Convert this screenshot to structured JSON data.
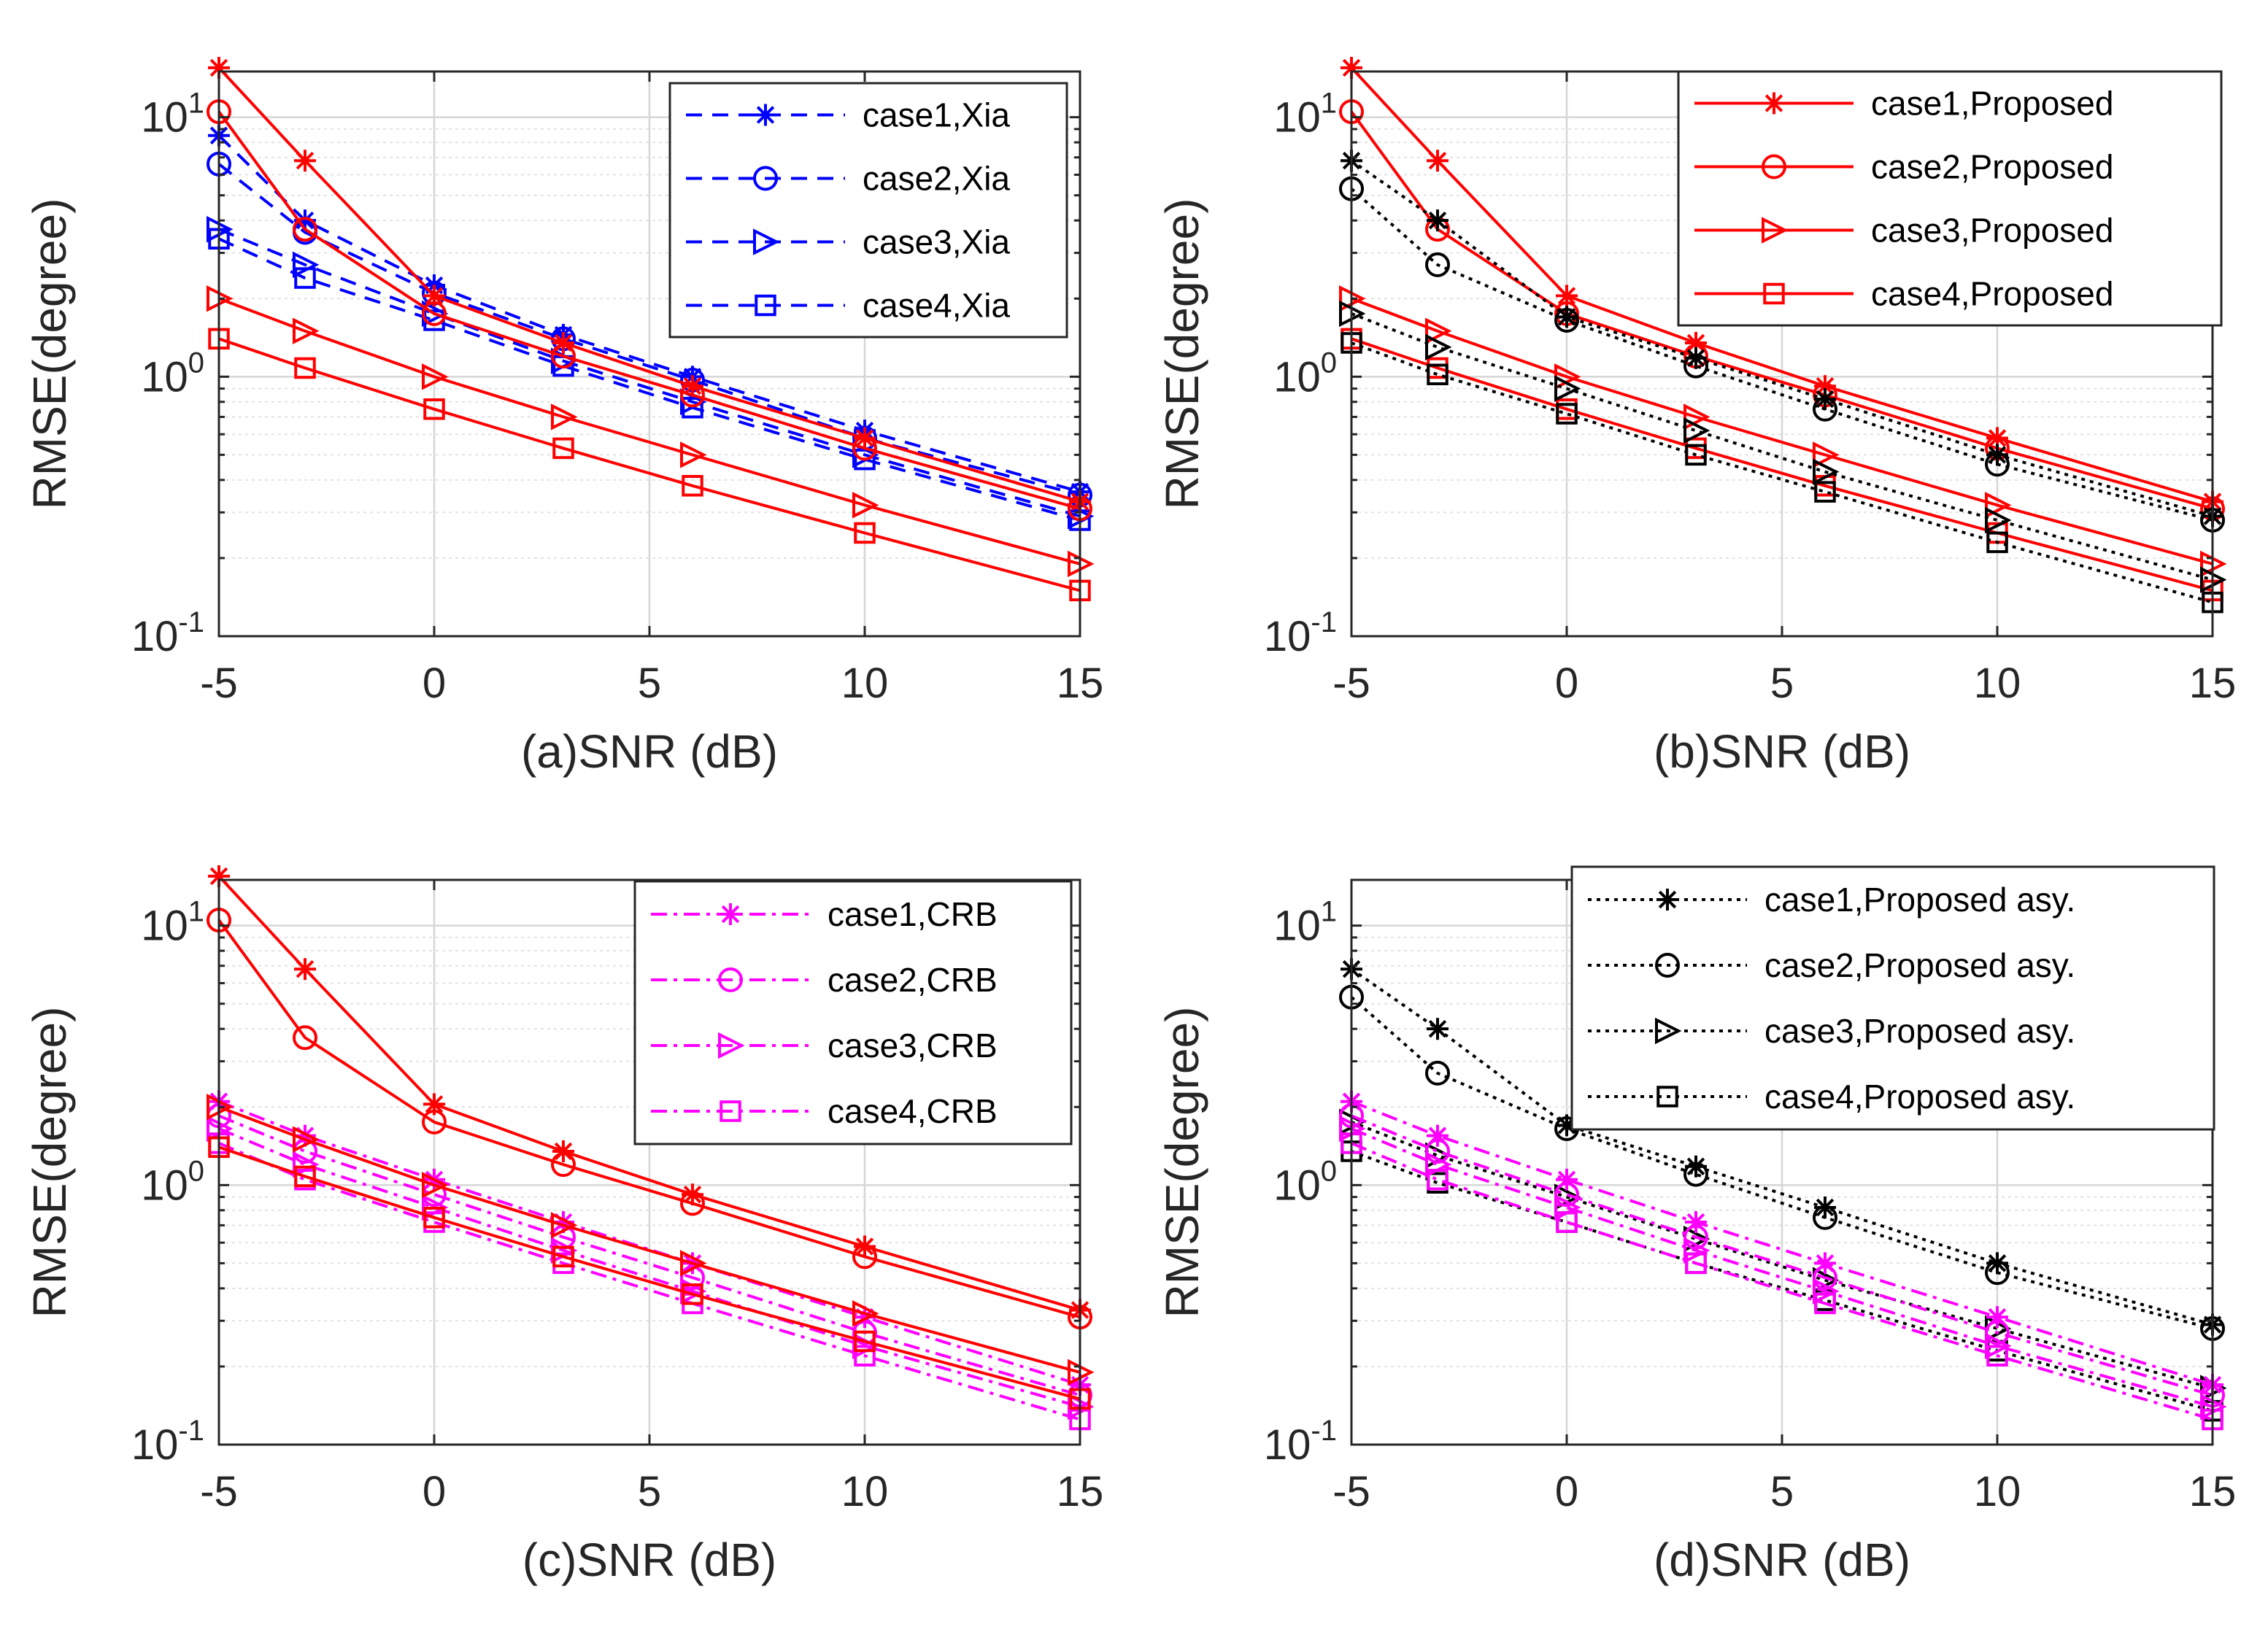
{
  "colors": {
    "red": "#ff0000",
    "blue": "#0000ff",
    "black": "#000000",
    "magenta": "#ff00ff"
  },
  "chart_data": [
    {
      "type": "line",
      "xlabel": "(a)SNR (dB)",
      "ylabel": "RMSE(degree)",
      "xlim": [
        -5,
        15
      ],
      "ylim": [
        0.1,
        15
      ],
      "yscale": "log",
      "xticks": [
        "-5",
        "0",
        "5",
        "10",
        "15"
      ],
      "yticks": [
        {
          "base": "10",
          "exp": "-1"
        },
        {
          "base": "10",
          "exp": "0"
        },
        {
          "base": "10",
          "exp": "1"
        }
      ],
      "grid": true,
      "legend_position": "top-right",
      "x": [
        -5,
        -3,
        0,
        3,
        6,
        10,
        15
      ],
      "series": [
        {
          "name": "case1,Xia",
          "color": "#0000ff",
          "marker": "star",
          "dash": "dashed",
          "in_legend": true,
          "values": [
            8.5,
            4.0,
            2.25,
            1.45,
            1.0,
            0.62,
            0.36
          ]
        },
        {
          "name": "case2,Xia",
          "color": "#0000ff",
          "marker": "circle",
          "dash": "dashed",
          "in_legend": true,
          "values": [
            6.6,
            3.6,
            2.1,
            1.4,
            0.97,
            0.58,
            0.35
          ]
        },
        {
          "name": "case3,Xia",
          "color": "#0000ff",
          "marker": "triangle",
          "dash": "dashed",
          "in_legend": true,
          "values": [
            3.7,
            2.7,
            1.75,
            1.15,
            0.8,
            0.5,
            0.29
          ]
        },
        {
          "name": "case4,Xia",
          "color": "#0000ff",
          "marker": "square",
          "dash": "dashed",
          "in_legend": true,
          "values": [
            3.4,
            2.4,
            1.65,
            1.1,
            0.76,
            0.48,
            0.28
          ]
        },
        {
          "name": "",
          "color": "#ff0000",
          "marker": "star",
          "dash": "solid",
          "in_legend": false,
          "values": [
            15.5,
            6.8,
            2.05,
            1.35,
            0.92,
            0.58,
            0.33
          ]
        },
        {
          "name": "",
          "color": "#ff0000",
          "marker": "circle",
          "dash": "solid",
          "in_legend": false,
          "values": [
            10.5,
            3.7,
            1.75,
            1.2,
            0.85,
            0.53,
            0.31
          ]
        },
        {
          "name": "",
          "color": "#ff0000",
          "marker": "triangle",
          "dash": "solid",
          "in_legend": false,
          "values": [
            2.0,
            1.5,
            1.0,
            0.7,
            0.5,
            0.32,
            0.19
          ]
        },
        {
          "name": "",
          "color": "#ff0000",
          "marker": "square",
          "dash": "solid",
          "in_legend": false,
          "values": [
            1.4,
            1.08,
            0.75,
            0.53,
            0.38,
            0.25,
            0.15
          ]
        }
      ]
    },
    {
      "type": "line",
      "xlabel": "(b)SNR (dB)",
      "ylabel": "RMSE(degree)",
      "xlim": [
        -5,
        15
      ],
      "ylim": [
        0.1,
        15
      ],
      "yscale": "log",
      "xticks": [
        "-5",
        "0",
        "5",
        "10",
        "15"
      ],
      "yticks": [
        {
          "base": "10",
          "exp": "-1"
        },
        {
          "base": "10",
          "exp": "0"
        },
        {
          "base": "10",
          "exp": "1"
        }
      ],
      "grid": true,
      "legend_position": "top-right",
      "x": [
        -5,
        -3,
        0,
        3,
        6,
        10,
        15
      ],
      "series": [
        {
          "name": "case1,Proposed",
          "color": "#ff0000",
          "marker": "star",
          "dash": "solid",
          "in_legend": true,
          "values": [
            15.5,
            6.8,
            2.05,
            1.35,
            0.92,
            0.58,
            0.33
          ]
        },
        {
          "name": "case2,Proposed",
          "color": "#ff0000",
          "marker": "circle",
          "dash": "solid",
          "in_legend": true,
          "values": [
            10.5,
            3.7,
            1.75,
            1.2,
            0.85,
            0.53,
            0.31
          ]
        },
        {
          "name": "case3,Proposed",
          "color": "#ff0000",
          "marker": "triangle",
          "dash": "solid",
          "in_legend": true,
          "values": [
            2.0,
            1.5,
            1.0,
            0.7,
            0.5,
            0.32,
            0.19
          ]
        },
        {
          "name": "case4,Proposed",
          "color": "#ff0000",
          "marker": "square",
          "dash": "solid",
          "in_legend": true,
          "values": [
            1.4,
            1.08,
            0.75,
            0.53,
            0.38,
            0.25,
            0.15
          ]
        },
        {
          "name": "",
          "color": "#000000",
          "marker": "star",
          "dash": "dotted",
          "in_legend": false,
          "values": [
            6.8,
            4.0,
            1.7,
            1.18,
            0.82,
            0.5,
            0.29
          ]
        },
        {
          "name": "",
          "color": "#000000",
          "marker": "circle",
          "dash": "dotted",
          "in_legend": false,
          "values": [
            5.3,
            2.7,
            1.65,
            1.1,
            0.75,
            0.46,
            0.28
          ]
        },
        {
          "name": "",
          "color": "#000000",
          "marker": "triangle",
          "dash": "dotted",
          "in_legend": false,
          "values": [
            1.75,
            1.3,
            0.9,
            0.62,
            0.43,
            0.28,
            0.165
          ]
        },
        {
          "name": "",
          "color": "#000000",
          "marker": "square",
          "dash": "dotted",
          "in_legend": false,
          "values": [
            1.35,
            1.02,
            0.72,
            0.5,
            0.36,
            0.23,
            0.135
          ]
        }
      ]
    },
    {
      "type": "line",
      "xlabel": "(c)SNR (dB)",
      "ylabel": "RMSE(degree)",
      "xlim": [
        -5,
        15
      ],
      "ylim": [
        0.1,
        15
      ],
      "yscale": "log",
      "xticks": [
        "-5",
        "0",
        "5",
        "10",
        "15"
      ],
      "yticks": [
        {
          "base": "10",
          "exp": "-1"
        },
        {
          "base": "10",
          "exp": "0"
        },
        {
          "base": "10",
          "exp": "1"
        }
      ],
      "grid": true,
      "legend_position": "top-right",
      "x": [
        -5,
        -3,
        0,
        3,
        6,
        10,
        15
      ],
      "series": [
        {
          "name": "case1,CRB",
          "color": "#ff00ff",
          "marker": "star",
          "dash": "dashdot",
          "in_legend": true,
          "values": [
            2.1,
            1.55,
            1.05,
            0.72,
            0.5,
            0.31,
            0.17
          ]
        },
        {
          "name": "case2,CRB",
          "color": "#ff00ff",
          "marker": "circle",
          "dash": "dashdot",
          "in_legend": true,
          "values": [
            1.85,
            1.35,
            0.92,
            0.63,
            0.44,
            0.27,
            0.155
          ]
        },
        {
          "name": "case3,CRB",
          "color": "#ff00ff",
          "marker": "triangle",
          "dash": "dashdot",
          "in_legend": true,
          "values": [
            1.65,
            1.2,
            0.82,
            0.56,
            0.39,
            0.24,
            0.14
          ]
        },
        {
          "name": "case4,CRB",
          "color": "#ff00ff",
          "marker": "square",
          "dash": "dashdot",
          "in_legend": true,
          "values": [
            1.45,
            1.05,
            0.72,
            0.5,
            0.35,
            0.22,
            0.125
          ]
        },
        {
          "name": "",
          "color": "#ff0000",
          "marker": "star",
          "dash": "solid",
          "in_legend": false,
          "values": [
            15.5,
            6.8,
            2.05,
            1.35,
            0.92,
            0.58,
            0.33
          ]
        },
        {
          "name": "",
          "color": "#ff0000",
          "marker": "circle",
          "dash": "solid",
          "in_legend": false,
          "values": [
            10.5,
            3.7,
            1.75,
            1.2,
            0.85,
            0.53,
            0.31
          ]
        },
        {
          "name": "",
          "color": "#ff0000",
          "marker": "triangle",
          "dash": "solid",
          "in_legend": false,
          "values": [
            2.0,
            1.5,
            1.0,
            0.7,
            0.5,
            0.32,
            0.19
          ]
        },
        {
          "name": "",
          "color": "#ff0000",
          "marker": "square",
          "dash": "solid",
          "in_legend": false,
          "values": [
            1.4,
            1.08,
            0.75,
            0.53,
            0.38,
            0.25,
            0.15
          ]
        }
      ]
    },
    {
      "type": "line",
      "xlabel": "(d)SNR (dB)",
      "ylabel": "RMSE(degree)",
      "xlim": [
        -5,
        15
      ],
      "ylim": [
        0.1,
        15
      ],
      "yscale": "log",
      "xticks": [
        "-5",
        "0",
        "5",
        "10",
        "15"
      ],
      "yticks": [
        {
          "base": "10",
          "exp": "-1"
        },
        {
          "base": "10",
          "exp": "0"
        },
        {
          "base": "10",
          "exp": "1"
        }
      ],
      "grid": true,
      "legend_position": "top-right",
      "x": [
        -5,
        -3,
        0,
        3,
        6,
        10,
        15
      ],
      "series": [
        {
          "name": "case1,Proposed asy.",
          "color": "#000000",
          "marker": "star",
          "dash": "dotted",
          "in_legend": true,
          "values": [
            6.8,
            4.0,
            1.7,
            1.18,
            0.82,
            0.5,
            0.29
          ]
        },
        {
          "name": "case2,Proposed asy.",
          "color": "#000000",
          "marker": "circle",
          "dash": "dotted",
          "in_legend": true,
          "values": [
            5.3,
            2.7,
            1.65,
            1.1,
            0.75,
            0.46,
            0.28
          ]
        },
        {
          "name": "case3,Proposed asy.",
          "color": "#000000",
          "marker": "triangle",
          "dash": "dotted",
          "in_legend": true,
          "values": [
            1.75,
            1.3,
            0.9,
            0.62,
            0.43,
            0.28,
            0.165
          ]
        },
        {
          "name": "case4,Proposed asy.",
          "color": "#000000",
          "marker": "square",
          "dash": "dotted",
          "in_legend": true,
          "values": [
            1.35,
            1.02,
            0.72,
            0.5,
            0.36,
            0.23,
            0.135
          ]
        },
        {
          "name": "",
          "color": "#ff00ff",
          "marker": "star",
          "dash": "dashdot",
          "in_legend": false,
          "values": [
            2.1,
            1.55,
            1.05,
            0.72,
            0.5,
            0.31,
            0.17
          ]
        },
        {
          "name": "",
          "color": "#ff00ff",
          "marker": "circle",
          "dash": "dashdot",
          "in_legend": false,
          "values": [
            1.85,
            1.35,
            0.92,
            0.63,
            0.44,
            0.27,
            0.155
          ]
        },
        {
          "name": "",
          "color": "#ff00ff",
          "marker": "triangle",
          "dash": "dashdot",
          "in_legend": false,
          "values": [
            1.65,
            1.2,
            0.82,
            0.56,
            0.39,
            0.24,
            0.14
          ]
        },
        {
          "name": "",
          "color": "#ff00ff",
          "marker": "square",
          "dash": "dashdot",
          "in_legend": false,
          "values": [
            1.45,
            1.05,
            0.72,
            0.5,
            0.35,
            0.22,
            0.125
          ]
        }
      ]
    }
  ]
}
